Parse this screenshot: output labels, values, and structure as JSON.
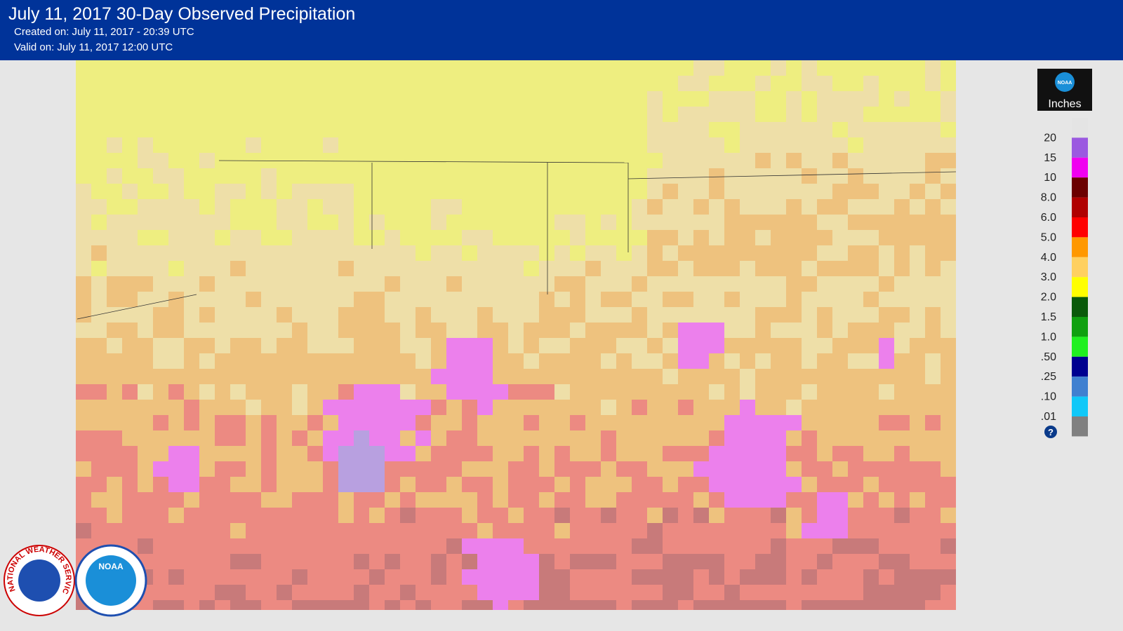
{
  "header": {
    "title": "July 11, 2017 30-Day Observed Precipitation",
    "created": "Created on: July 11, 2017 - 20:39 UTC",
    "valid": "Valid on: July 11, 2017 12:00 UTC"
  },
  "legend": {
    "unit": "Inches",
    "logo": "NOAA",
    "help": "?",
    "items": [
      {
        "label": "20",
        "color": "#9b59e0"
      },
      {
        "label": "15",
        "color": "#f000f0"
      },
      {
        "label": "10",
        "color": "#6b0000"
      },
      {
        "label": "8.0",
        "color": "#b00000"
      },
      {
        "label": "6.0",
        "color": "#ff0000"
      },
      {
        "label": "5.0",
        "color": "#ff9800"
      },
      {
        "label": "4.0",
        "color": "#ffd060"
      },
      {
        "label": "3.0",
        "color": "#ffff00"
      },
      {
        "label": "2.0",
        "color": "#0a5a0a"
      },
      {
        "label": "1.5",
        "color": "#10a010"
      },
      {
        "label": "1.0",
        "color": "#20f020"
      },
      {
        "label": ".50",
        "color": "#000090"
      },
      {
        "label": ".25",
        "color": "#4080d0"
      },
      {
        "label": ".10",
        "color": "#10c8f8"
      },
      {
        "label": ".01",
        "color": "#808080"
      }
    ]
  },
  "logos": {
    "nws": "NATIONAL WEATHER SERVICE",
    "noaa": "NOAA"
  }
}
